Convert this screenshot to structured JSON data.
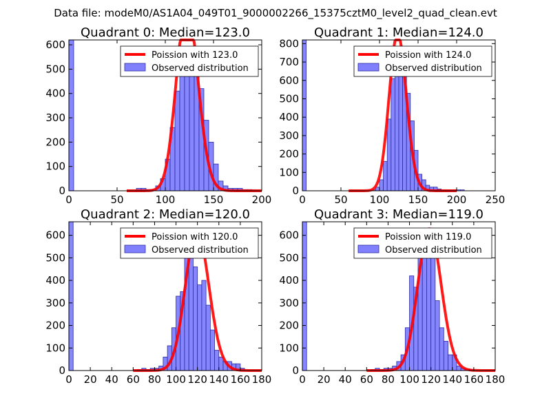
{
  "suptitle": "Data file: modeM0/AS1A04_049T01_9000002266_15375cztM0_level2_quad_clean.evt",
  "colors": {
    "poisson": "#ff0000",
    "bar_fill": "#8080ff",
    "bar_edge": "#2a2aa0",
    "frame": "#000000"
  },
  "chart_data": [
    {
      "type": "bar",
      "title": "Quadrant 0: Median=123.0",
      "xlim": [
        0,
        200
      ],
      "ylim": [
        0,
        620
      ],
      "xticks": [
        0,
        50,
        100,
        150,
        200
      ],
      "yticks": [
        0,
        100,
        200,
        300,
        400,
        500,
        600
      ],
      "legend": [
        "Poission with 123.0",
        "Observed distribution"
      ],
      "legend_position": "top-right",
      "median": 123.0,
      "bin_start": 0,
      "bin_width": 5,
      "values": [
        620,
        0,
        0,
        0,
        0,
        0,
        0,
        0,
        0,
        0,
        0,
        0,
        0,
        0,
        10,
        10,
        5,
        5,
        20,
        50,
        130,
        260,
        410,
        540,
        580,
        570,
        540,
        420,
        290,
        200,
        110,
        40,
        20,
        10,
        10,
        10,
        5,
        5,
        0,
        0
      ]
    },
    {
      "type": "bar",
      "title": "Quadrant 1: Median=124.0",
      "xlim": [
        0,
        250
      ],
      "ylim": [
        0,
        820
      ],
      "xticks": [
        0,
        50,
        100,
        150,
        200,
        250
      ],
      "yticks": [
        0,
        100,
        200,
        300,
        400,
        500,
        600,
        700,
        800
      ],
      "legend": [
        "Poission with 124.0",
        "Observed distribution"
      ],
      "legend_position": "top-right",
      "median": 124.0,
      "bin_start": 0,
      "bin_width": 5,
      "values": [
        820,
        0,
        0,
        0,
        0,
        0,
        0,
        0,
        0,
        0,
        0,
        0,
        0,
        0,
        0,
        0,
        0,
        0,
        5,
        20,
        60,
        160,
        390,
        610,
        660,
        770,
        710,
        530,
        380,
        220,
        90,
        60,
        30,
        20,
        20,
        10,
        5,
        5,
        5,
        5,
        5,
        5
      ]
    },
    {
      "type": "bar",
      "title": "Quadrant 2: Median=120.0",
      "xlim": [
        0,
        180
      ],
      "ylim": [
        0,
        660
      ],
      "xticks": [
        0,
        20,
        40,
        60,
        80,
        100,
        120,
        140,
        160,
        180
      ],
      "yticks": [
        0,
        100,
        200,
        300,
        400,
        500,
        600
      ],
      "legend": [
        "Poission with 120.0",
        "Observed distribution"
      ],
      "legend_position": "top-right",
      "median": 120.0,
      "bin_start": 0,
      "bin_width": 4,
      "values": [
        660,
        0,
        0,
        0,
        0,
        0,
        0,
        0,
        0,
        0,
        0,
        0,
        0,
        0,
        0,
        0,
        5,
        10,
        5,
        10,
        10,
        20,
        60,
        110,
        190,
        330,
        350,
        560,
        620,
        460,
        380,
        400,
        290,
        180,
        90,
        60,
        40,
        40,
        30,
        30,
        10
      ]
    },
    {
      "type": "bar",
      "title": "Quadrant 3: Median=119.0",
      "xlim": [
        0,
        180
      ],
      "ylim": [
        0,
        660
      ],
      "xticks": [
        0,
        20,
        40,
        60,
        80,
        100,
        120,
        140,
        160,
        180
      ],
      "yticks": [
        0,
        100,
        200,
        300,
        400,
        500,
        600
      ],
      "legend": [
        "Poission with 119.0",
        "Observed distribution"
      ],
      "legend_position": "top-right",
      "median": 119.0,
      "bin_start": 0,
      "bin_width": 4,
      "values": [
        660,
        0,
        0,
        0,
        0,
        0,
        0,
        0,
        0,
        0,
        0,
        0,
        0,
        0,
        0,
        0,
        5,
        10,
        5,
        10,
        10,
        20,
        40,
        70,
        190,
        420,
        370,
        590,
        620,
        570,
        560,
        310,
        190,
        130,
        70,
        70,
        20,
        10,
        5,
        5,
        0
      ]
    }
  ]
}
